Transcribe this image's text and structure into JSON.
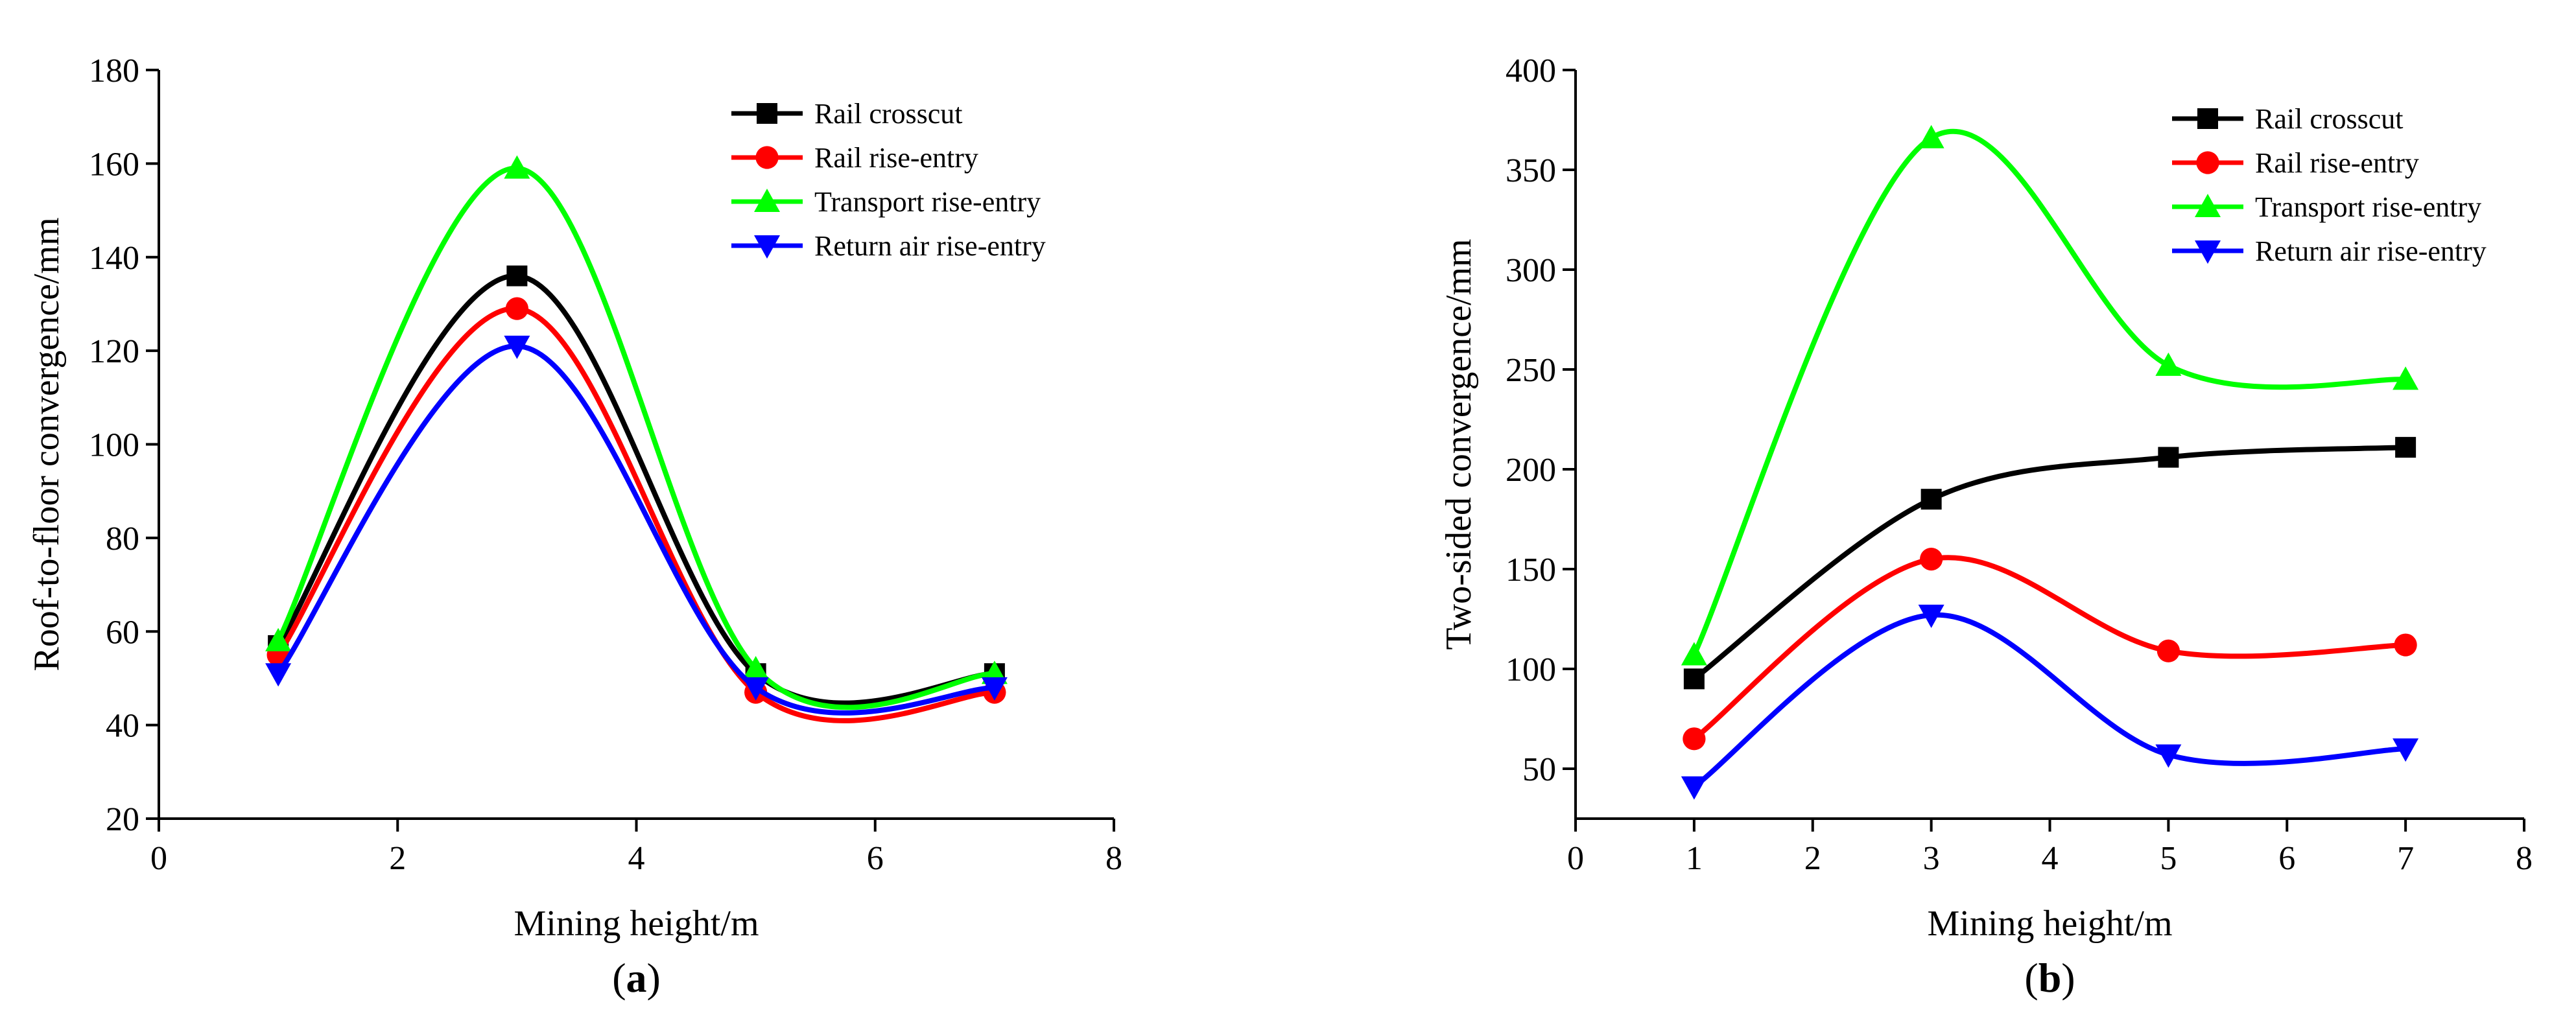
{
  "chart_data": [
    {
      "type": "line",
      "panel_label": "a",
      "xlabel": "Mining height/m",
      "ylabel": "Roof-to-floor convergence/mm",
      "xlim": [
        0,
        8
      ],
      "ylim": [
        20,
        180
      ],
      "xticks": [
        0,
        2,
        4,
        6,
        8
      ],
      "yticks": [
        20,
        40,
        60,
        80,
        100,
        120,
        140,
        160,
        180
      ],
      "legend_position": "top-right",
      "grid": false,
      "x": [
        1,
        3,
        5,
        7
      ],
      "series": [
        {
          "name": "Rail crosscut",
          "marker": "square",
          "color": "#000000",
          "values": [
            57,
            136,
            51,
            51
          ]
        },
        {
          "name": "Rail rise-entry",
          "marker": "circle",
          "color": "#ff0000",
          "values": [
            55,
            129,
            47,
            47
          ]
        },
        {
          "name": "Transport rise-entry",
          "marker": "triangle-up",
          "color": "#00ff00",
          "values": [
            58,
            159,
            52,
            51
          ]
        },
        {
          "name": "Return air rise-entry",
          "marker": "triangle-down",
          "color": "#0000ff",
          "values": [
            51,
            121,
            48,
            48
          ]
        }
      ]
    },
    {
      "type": "line",
      "panel_label": "b",
      "xlabel": "Mining height/m",
      "ylabel": "Two-sided convergence/mm",
      "xlim": [
        0,
        8
      ],
      "ylim": [
        25,
        400
      ],
      "xticks": [
        0,
        1,
        2,
        3,
        4,
        5,
        6,
        7,
        8
      ],
      "yticks": [
        50,
        100,
        150,
        200,
        250,
        300,
        350,
        400
      ],
      "legend_position": "top-right",
      "grid": false,
      "x": [
        1,
        3,
        5,
        7
      ],
      "series": [
        {
          "name": "Rail crosscut",
          "marker": "square",
          "color": "#000000",
          "values": [
            95,
            185,
            206,
            211
          ]
        },
        {
          "name": "Rail rise-entry",
          "marker": "circle",
          "color": "#ff0000",
          "values": [
            65,
            155,
            109,
            112
          ]
        },
        {
          "name": "Transport rise-entry",
          "marker": "triangle-up",
          "color": "#00ff00",
          "values": [
            107,
            366,
            252,
            245
          ]
        },
        {
          "name": "Return air rise-entry",
          "marker": "triangle-down",
          "color": "#0000ff",
          "values": [
            41,
            127,
            57,
            60
          ]
        }
      ]
    }
  ]
}
